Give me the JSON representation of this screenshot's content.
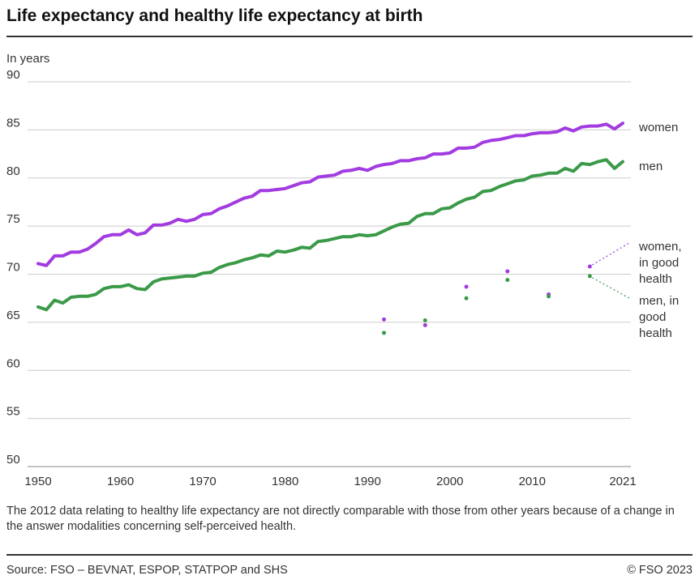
{
  "header": {
    "title": "Life expectancy and healthy life expectancy at birth"
  },
  "footer": {
    "note": "The 2012 data relating to healthy life expectancy are not directly comparable with those from other years because of a change in the answer modalities concerning self-perceived health.",
    "source": "Source: FSO – BEVNAT, ESPOP, STATPOP and SHS",
    "copyright": "© FSO 2023"
  },
  "chart_data": {
    "type": "line",
    "title": "Life expectancy and healthy life expectancy at birth",
    "ylabel": "In years",
    "xlabel": "",
    "xlim": [
      1950,
      2021
    ],
    "ylim": [
      50,
      90
    ],
    "xticks": [
      1950,
      1960,
      1970,
      1980,
      1990,
      2000,
      2010,
      2021
    ],
    "yticks": [
      50,
      55,
      60,
      65,
      70,
      75,
      80,
      85,
      90
    ],
    "grid": "horizontal",
    "legend": "direct labels at right",
    "colors": {
      "women": "#a23be0",
      "men": "#3a9a48"
    },
    "x": [
      1950,
      1951,
      1952,
      1953,
      1954,
      1955,
      1956,
      1957,
      1958,
      1959,
      1960,
      1961,
      1962,
      1963,
      1964,
      1965,
      1966,
      1967,
      1968,
      1969,
      1970,
      1971,
      1972,
      1973,
      1974,
      1975,
      1976,
      1977,
      1978,
      1979,
      1980,
      1981,
      1982,
      1983,
      1984,
      1985,
      1986,
      1987,
      1988,
      1989,
      1990,
      1991,
      1992,
      1993,
      1994,
      1995,
      1996,
      1997,
      1998,
      1999,
      2000,
      2001,
      2002,
      2003,
      2004,
      2005,
      2006,
      2007,
      2008,
      2009,
      2010,
      2011,
      2012,
      2013,
      2014,
      2015,
      2016,
      2017,
      2018,
      2019,
      2020,
      2021
    ],
    "series": [
      {
        "name": "women",
        "kind": "line",
        "values": [
          71.1,
          70.9,
          71.9,
          71.9,
          72.3,
          72.3,
          72.6,
          73.2,
          73.9,
          74.1,
          74.1,
          74.6,
          74.1,
          74.3,
          75.1,
          75.1,
          75.3,
          75.7,
          75.5,
          75.7,
          76.2,
          76.3,
          76.8,
          77.1,
          77.5,
          77.9,
          78.1,
          78.7,
          78.7,
          78.8,
          78.9,
          79.2,
          79.5,
          79.6,
          80.1,
          80.2,
          80.3,
          80.7,
          80.8,
          81.0,
          80.8,
          81.2,
          81.4,
          81.5,
          81.8,
          81.8,
          82.0,
          82.1,
          82.5,
          82.5,
          82.6,
          83.1,
          83.1,
          83.2,
          83.7,
          83.9,
          84.0,
          84.2,
          84.4,
          84.4,
          84.6,
          84.7,
          84.7,
          84.8,
          85.2,
          84.9,
          85.3,
          85.4,
          85.4,
          85.6,
          85.1,
          85.7
        ]
      },
      {
        "name": "men",
        "kind": "line",
        "values": [
          66.6,
          66.3,
          67.3,
          67.0,
          67.6,
          67.7,
          67.7,
          67.9,
          68.5,
          68.7,
          68.7,
          68.9,
          68.5,
          68.4,
          69.2,
          69.5,
          69.6,
          69.7,
          69.8,
          69.8,
          70.1,
          70.2,
          70.7,
          71.0,
          71.2,
          71.5,
          71.7,
          72.0,
          71.9,
          72.4,
          72.3,
          72.5,
          72.8,
          72.7,
          73.4,
          73.5,
          73.7,
          73.9,
          73.9,
          74.1,
          74.0,
          74.1,
          74.5,
          74.9,
          75.2,
          75.3,
          76.0,
          76.3,
          76.3,
          76.8,
          76.9,
          77.4,
          77.8,
          78.0,
          78.6,
          78.7,
          79.1,
          79.4,
          79.7,
          79.8,
          80.2,
          80.3,
          80.5,
          80.5,
          81.0,
          80.7,
          81.5,
          81.4,
          81.7,
          81.9,
          81.0,
          81.7
        ]
      },
      {
        "name": "women, in good health",
        "kind": "points",
        "points": [
          [
            1992,
            65.3
          ],
          [
            1997,
            64.7
          ],
          [
            2002,
            68.7
          ],
          [
            2007,
            70.3
          ],
          [
            2012,
            67.9
          ],
          [
            2017,
            70.8
          ]
        ]
      },
      {
        "name": "men, in good health",
        "kind": "points",
        "points": [
          [
            1992,
            63.9
          ],
          [
            1997,
            65.2
          ],
          [
            2002,
            67.5
          ],
          [
            2007,
            69.4
          ],
          [
            2012,
            67.7
          ],
          [
            2017,
            69.8
          ]
        ]
      }
    ],
    "labels": {
      "women": [
        "women"
      ],
      "men": [
        "men"
      ],
      "women_health": [
        "women,",
        "in good",
        "health"
      ],
      "men_health": [
        "men, in",
        "good",
        "health"
      ]
    }
  }
}
